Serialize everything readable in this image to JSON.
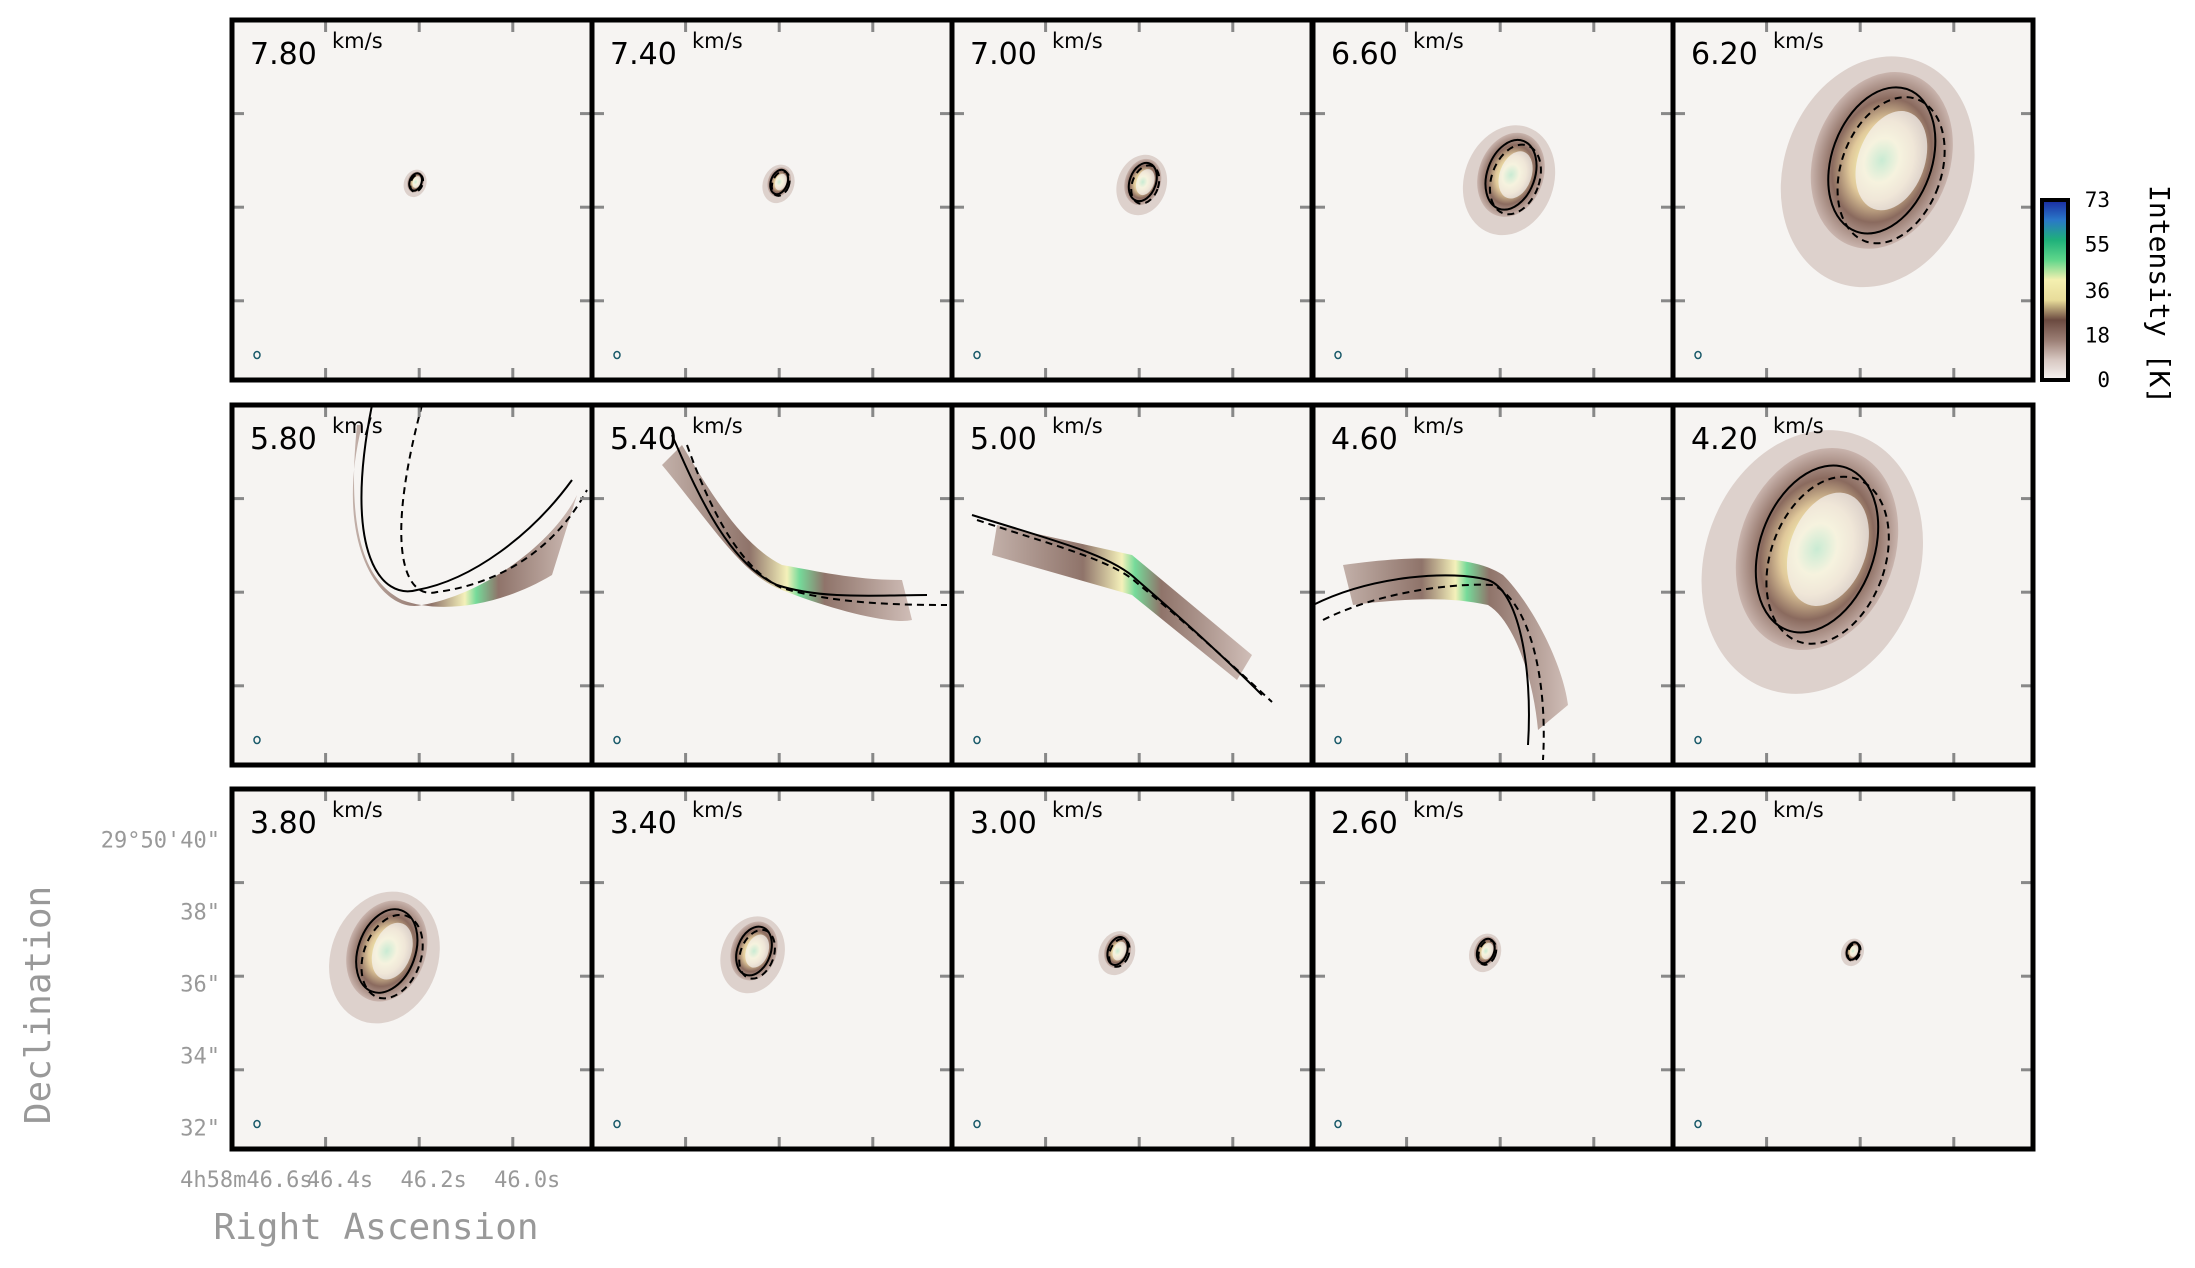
{
  "chart_data": {
    "type": "channel-map",
    "colorbar": {
      "label": "Intensity [K]",
      "ticks": [
        0,
        18,
        36,
        55,
        73
      ],
      "colors": [
        "#f7f4f2",
        "#d8c8c2",
        "#9b7e74",
        "#6b4a40",
        "#e8dc9a",
        "#f4f0b0",
        "#5fd68a",
        "#1fb07a",
        "#2a78c8",
        "#1a2aa0"
      ]
    },
    "velocity_unit": "km/s",
    "panels": [
      {
        "velocity": "7.80",
        "shape": "ellipse",
        "size": 0.05,
        "offset_x": 0.01,
        "offset_y": 0.0
      },
      {
        "velocity": "7.40",
        "shape": "ellipse",
        "size": 0.07,
        "offset_x": 0.02,
        "offset_y": 0.0
      },
      {
        "velocity": "7.00",
        "shape": "ellipse",
        "size": 0.11,
        "offset_x": 0.03,
        "offset_y": 0.0
      },
      {
        "velocity": "6.60",
        "shape": "ellipse",
        "size": 0.2,
        "offset_x": 0.05,
        "offset_y": 0.02
      },
      {
        "velocity": "6.20",
        "shape": "ellipse",
        "size": 0.42,
        "offset_x": 0.08,
        "offset_y": 0.06
      },
      {
        "velocity": "5.80",
        "shape": "arc",
        "variant": "v-up"
      },
      {
        "velocity": "5.40",
        "shape": "arc",
        "variant": "left-up"
      },
      {
        "velocity": "5.00",
        "shape": "arc",
        "variant": "line"
      },
      {
        "velocity": "4.60",
        "shape": "arc",
        "variant": "right-down"
      },
      {
        "velocity": "4.20",
        "shape": "ellipse-down",
        "size": 0.48,
        "offset_x": -0.1,
        "offset_y": 0.05
      },
      {
        "velocity": "3.80",
        "shape": "ellipse",
        "size": 0.24,
        "offset_x": -0.07,
        "offset_y": 0.0
      },
      {
        "velocity": "3.40",
        "shape": "ellipse",
        "size": 0.14,
        "offset_x": -0.05,
        "offset_y": 0.0
      },
      {
        "velocity": "3.00",
        "shape": "ellipse",
        "size": 0.08,
        "offset_x": -0.04,
        "offset_y": 0.0
      },
      {
        "velocity": "2.60",
        "shape": "ellipse",
        "size": 0.07,
        "offset_x": -0.02,
        "offset_y": 0.0
      },
      {
        "velocity": "2.20",
        "shape": "ellipse",
        "size": 0.05,
        "offset_x": 0.0,
        "offset_y": 0.0
      }
    ],
    "y_axis": {
      "label": "Declination",
      "tick_labels": [
        "29°50'40\"",
        "38\"",
        "36\"",
        "34\"",
        "32\""
      ]
    },
    "x_axis": {
      "label": "Right Ascension",
      "tick_labels": [
        "4h58m46.6s",
        "46.4s",
        "46.2s",
        "46.0s"
      ]
    }
  }
}
